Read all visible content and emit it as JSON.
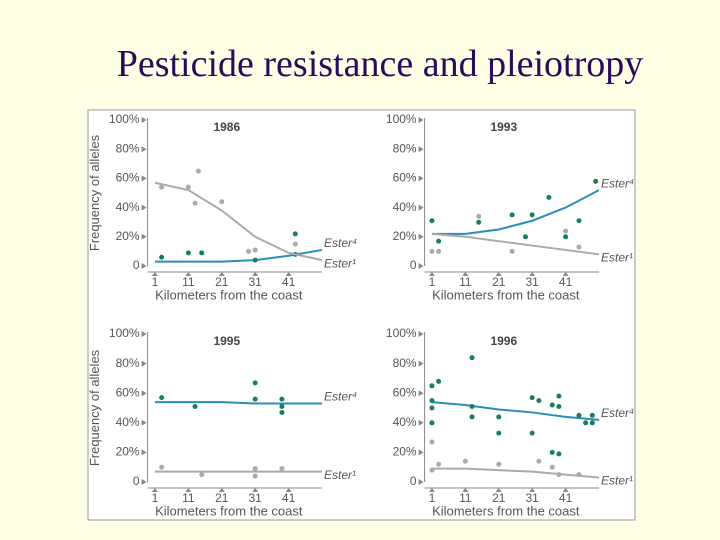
{
  "title": "Pesticide resistance and pleiotropy",
  "chart_data": [
    {
      "type": "scatter",
      "title": "1986",
      "xlabel": "Kilometers from the coast",
      "ylabel": "Frequency of alleles",
      "xlim": [
        0,
        51
      ],
      "ylim": [
        0,
        100
      ],
      "xticks": [
        1,
        11,
        21,
        31,
        41
      ],
      "yticks": [
        0,
        {
          "value": 20,
          "label": "20%"
        },
        {
          "value": 40,
          "label": "40%"
        },
        {
          "value": 60,
          "label": "60%"
        },
        {
          "value": 80,
          "label": "80%"
        },
        {
          "value": 100,
          "label": "100%"
        }
      ],
      "fit_x": [
        1,
        11,
        21,
        31,
        41,
        51
      ],
      "series": [
        {
          "name": "Ester⁴",
          "color": "#1b7d5c",
          "fit_color": "#2a8fb3",
          "x": [
            3,
            11,
            15,
            31,
            43,
            43
          ],
          "values": [
            6,
            9,
            9,
            4,
            22,
            8
          ],
          "fit": [
            3,
            3,
            3,
            4,
            7,
            11
          ]
        },
        {
          "name": "Ester¹",
          "color": "#aaaaaa",
          "fit_color": "#aaaaaa",
          "x": [
            3,
            11,
            13,
            14,
            21,
            29,
            31,
            43
          ],
          "values": [
            54,
            54,
            43,
            65,
            44,
            10,
            11,
            15
          ],
          "fit": [
            57,
            52,
            38,
            20,
            9,
            4
          ]
        }
      ]
    },
    {
      "type": "scatter",
      "title": "1993",
      "xlabel": "Kilometers from the coast",
      "xlim": [
        0,
        51
      ],
      "ylim": [
        0,
        100
      ],
      "xticks": [
        1,
        11,
        21,
        31,
        41
      ],
      "yticks": [
        0,
        {
          "value": 20,
          "label": "20%"
        },
        {
          "value": 40,
          "label": "40%"
        },
        {
          "value": 60,
          "label": "60%"
        },
        {
          "value": 80,
          "label": "80%"
        },
        {
          "value": 100,
          "label": "100%"
        }
      ],
      "fit_x": [
        1,
        11,
        21,
        31,
        41,
        51
      ],
      "series": [
        {
          "name": "Ester⁴",
          "color": "#1b7d5c",
          "fit_color": "#2a8fb3",
          "x": [
            1,
            3,
            15,
            25,
            29,
            31,
            36,
            41,
            45,
            50
          ],
          "values": [
            31,
            17,
            30,
            35,
            20,
            35,
            47,
            20,
            31,
            58
          ],
          "fit": [
            22,
            22,
            25,
            31,
            40,
            52
          ]
        },
        {
          "name": "Ester¹",
          "color": "#aaaaaa",
          "fit_color": "#aaaaaa",
          "x": [
            1,
            3,
            15,
            25,
            41,
            45
          ],
          "values": [
            10,
            10,
            34,
            10,
            24,
            13
          ],
          "fit": [
            22,
            20,
            17,
            14,
            11,
            8
          ]
        }
      ]
    },
    {
      "type": "scatter",
      "title": "1995",
      "xlabel": "Kilometers from the coast",
      "ylabel": "Frequency of alleles",
      "xlim": [
        0,
        51
      ],
      "ylim": [
        0,
        100
      ],
      "xticks": [
        1,
        11,
        21,
        31,
        41
      ],
      "yticks": [
        0,
        {
          "value": 20,
          "label": "20%"
        },
        {
          "value": 40,
          "label": "40%"
        },
        {
          "value": 60,
          "label": "60%"
        },
        {
          "value": 80,
          "label": "80%"
        },
        {
          "value": 100,
          "label": "100%"
        }
      ],
      "fit_x": [
        1,
        11,
        21,
        31,
        41,
        51
      ],
      "series": [
        {
          "name": "Ester⁴",
          "color": "#1b7d5c",
          "fit_color": "#2a8fb3",
          "x": [
            3,
            13,
            31,
            31,
            39,
            39,
            39
          ],
          "values": [
            57,
            51,
            67,
            56,
            56,
            51,
            47
          ],
          "fit": [
            54,
            54,
            54,
            53,
            53,
            53
          ]
        },
        {
          "name": "Ester¹",
          "color": "#aaaaaa",
          "fit_color": "#aaaaaa",
          "x": [
            3,
            15,
            31,
            31,
            39
          ],
          "values": [
            10,
            5,
            9,
            4,
            9
          ],
          "fit": [
            7,
            7,
            7,
            7,
            7,
            7
          ]
        }
      ]
    },
    {
      "type": "scatter",
      "title": "1996",
      "xlabel": "Kilometers from the coast",
      "xlim": [
        0,
        51
      ],
      "ylim": [
        0,
        100
      ],
      "xticks": [
        1,
        11,
        21,
        31,
        41
      ],
      "yticks": [
        0,
        {
          "value": 20,
          "label": "20%"
        },
        {
          "value": 40,
          "label": "40%"
        },
        {
          "value": 60,
          "label": "60%"
        },
        {
          "value": 80,
          "label": "80%"
        },
        {
          "value": 100,
          "label": "100%"
        }
      ],
      "fit_x": [
        1,
        11,
        21,
        31,
        41,
        51
      ],
      "series": [
        {
          "name": "Ester⁴",
          "color": "#1b7d5c",
          "fit_color": "#2a8fb3",
          "x": [
            1,
            3,
            1,
            1,
            1,
            13,
            13,
            13,
            21,
            21,
            31,
            31,
            33,
            37,
            39,
            39,
            45,
            47,
            49,
            49,
            37,
            39
          ],
          "values": [
            65,
            68,
            55,
            50,
            40,
            84,
            51,
            44,
            44,
            33,
            57,
            33,
            55,
            52,
            51,
            58,
            45,
            40,
            45,
            40,
            20,
            19
          ],
          "fit": [
            54,
            52,
            49,
            47,
            44,
            42
          ]
        },
        {
          "name": "Ester¹",
          "color": "#aaaaaa",
          "fit_color": "#aaaaaa",
          "x": [
            1,
            1,
            3,
            11,
            21,
            33,
            37,
            45,
            39
          ],
          "values": [
            27,
            8,
            12,
            14,
            12,
            14,
            10,
            5,
            5
          ],
          "fit": [
            9,
            9,
            8,
            7,
            5,
            3
          ]
        }
      ]
    }
  ]
}
